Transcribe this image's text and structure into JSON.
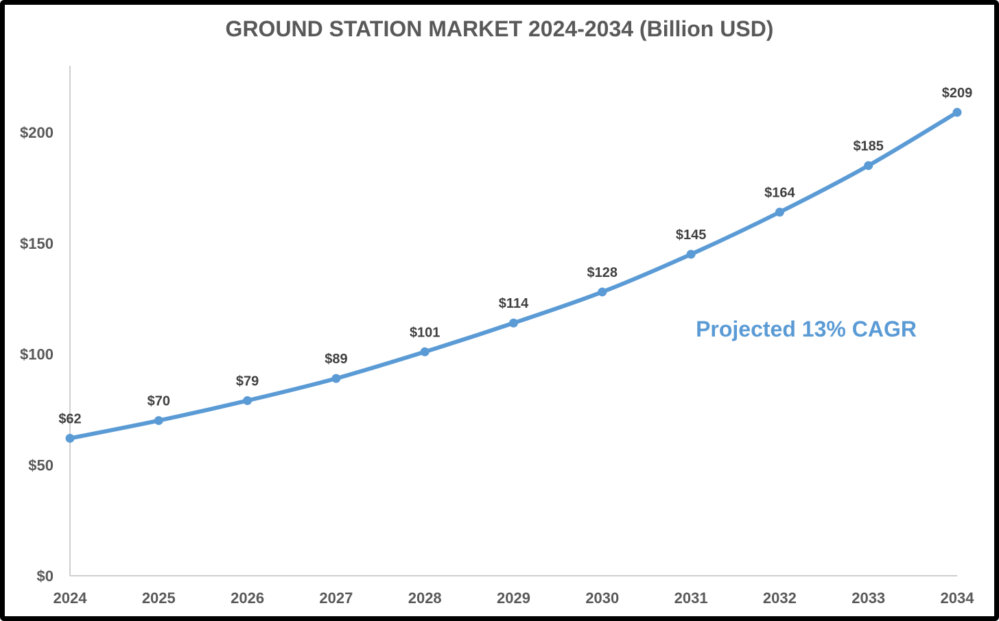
{
  "chart_data": {
    "type": "line",
    "title": "GROUND STATION MARKET 2024-2034 (Billion USD)",
    "xlabel": "",
    "ylabel": "",
    "categories": [
      "2024",
      "2025",
      "2026",
      "2027",
      "2028",
      "2029",
      "2030",
      "2031",
      "2032",
      "2033",
      "2034"
    ],
    "values": [
      62,
      70,
      79,
      89,
      101,
      114,
      128,
      145,
      164,
      185,
      209
    ],
    "data_labels": [
      "$62",
      "$70",
      "$79",
      "$89",
      "$101",
      "$114",
      "$128",
      "$145",
      "$164",
      "$185",
      "$209"
    ],
    "ylim": [
      0,
      230
    ],
    "y_ticks": [
      0,
      50,
      100,
      150,
      200
    ],
    "y_tick_labels": [
      "$0",
      "$50",
      "$100",
      "$150",
      "$200"
    ],
    "grid": false,
    "legend": "none",
    "line_color": "#5B9BD5",
    "annotation": "Projected 13% CAGR"
  }
}
